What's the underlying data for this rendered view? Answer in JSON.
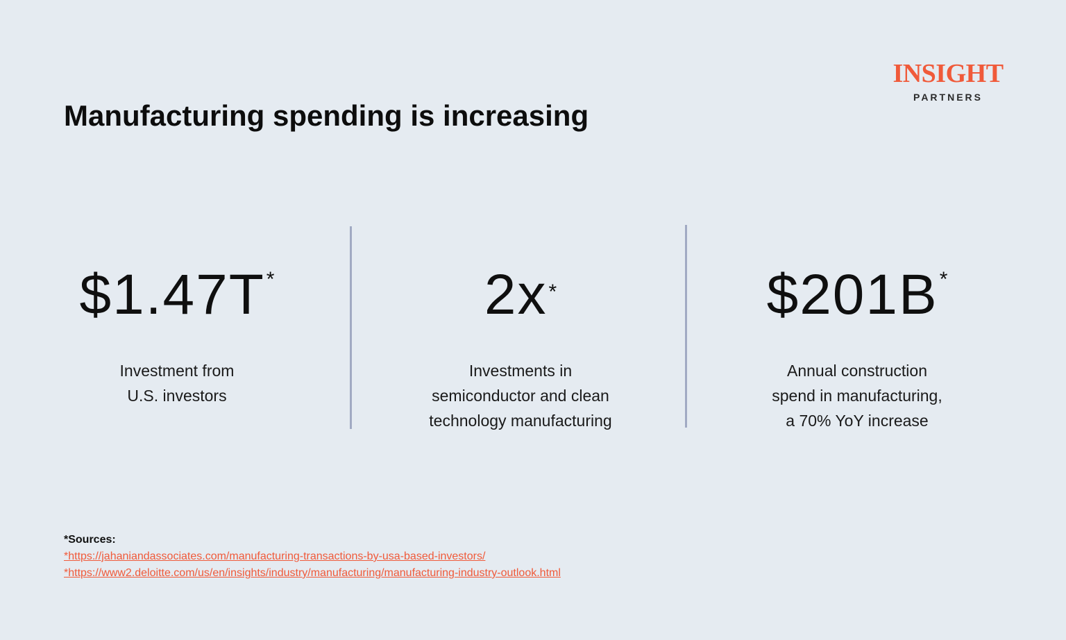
{
  "brand": {
    "logo_word": "INSIGHT",
    "logo_sub": "PARTNERS",
    "accent_color": "#f05a3a"
  },
  "title": "Manufacturing spending is increasing",
  "stats": [
    {
      "value": "$1.47T",
      "asterisk": "*",
      "label_lines": [
        "Investment from",
        "U.S. investors"
      ]
    },
    {
      "value": "2x",
      "asterisk": "*",
      "label_lines": [
        "Investments in",
        "semiconductor and clean",
        "technology manufacturing"
      ]
    },
    {
      "value": "$201B",
      "asterisk": "*",
      "label_lines": [
        "Annual construction",
        "spend in manufacturing,",
        "a 70% YoY increase"
      ]
    }
  ],
  "sources": {
    "heading": "*Sources:",
    "links": [
      "*https://jahaniandassociates.com/manufacturing-transactions-by-usa-based-investors/",
      "*https://www2.deloitte.com/us/en/insights/industry/manufacturing/manufacturing-industry-outlook.html"
    ]
  }
}
